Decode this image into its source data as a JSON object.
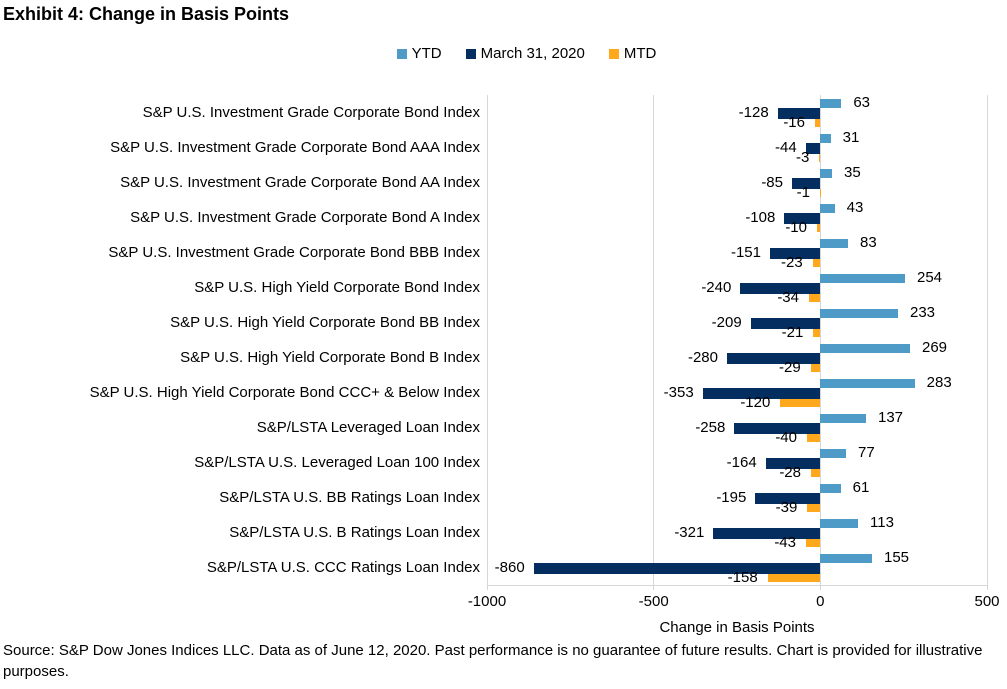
{
  "title": "Exhibit 4: Change in Basis Points",
  "source_note": "Source: S&P Dow Jones Indices LLC. Data as of June 12, 2020. Past performance is no guarantee of future results. Chart is provided for illustrative purposes.",
  "colors": {
    "ytd": "#4f9bc8",
    "march": "#042e60",
    "mtd": "#ffa81c",
    "gridline": "#d6d6d6",
    "text": "#000000"
  },
  "chart_data": {
    "type": "bar",
    "orientation": "horizontal",
    "title": "Exhibit 4: Change in Basis Points",
    "xlabel": "Change in Basis Points",
    "ylabel": "",
    "xlim": [
      -1000,
      500
    ],
    "xticks": [
      -1000,
      -500,
      0,
      500
    ],
    "xtick_labels": [
      "-1000",
      "-500",
      "0",
      "500"
    ],
    "grid": true,
    "legend_position": "top",
    "categories": [
      "S&P U.S. Investment Grade Corporate Bond Index",
      "S&P U.S. Investment Grade Corporate Bond AAA Index",
      "S&P U.S. Investment Grade Corporate Bond AA Index",
      "S&P U.S. Investment Grade Corporate Bond A Index",
      "S&P U.S. Investment Grade Corporate Bond BBB Index",
      "S&P U.S. High Yield Corporate Bond Index",
      "S&P U.S. High Yield Corporate Bond BB Index",
      "S&P U.S. High Yield Corporate Bond B Index",
      "S&P U.S. High Yield Corporate Bond CCC+ & Below Index",
      "S&P/LSTA Leveraged Loan Index",
      "S&P/LSTA U.S. Leveraged Loan 100 Index",
      "S&P/LSTA U.S. BB Ratings Loan Index",
      "S&P/LSTA U.S. B Ratings Loan Index",
      "S&P/LSTA U.S. CCC Ratings Loan Index"
    ],
    "series": [
      {
        "name": "YTD",
        "color": "#4f9bc8",
        "values": [
          63,
          31,
          35,
          43,
          83,
          254,
          233,
          269,
          283,
          137,
          77,
          61,
          113,
          155
        ]
      },
      {
        "name": "March 31, 2020",
        "color": "#042e60",
        "values": [
          -128,
          -44,
          -85,
          -108,
          -151,
          -240,
          -209,
          -280,
          -353,
          -258,
          -164,
          -195,
          -321,
          -860
        ]
      },
      {
        "name": "MTD",
        "color": "#ffa81c",
        "values": [
          -16,
          -3,
          -1,
          -10,
          -23,
          -34,
          -21,
          -29,
          -120,
          -40,
          -28,
          -39,
          -43,
          -158
        ]
      }
    ]
  }
}
